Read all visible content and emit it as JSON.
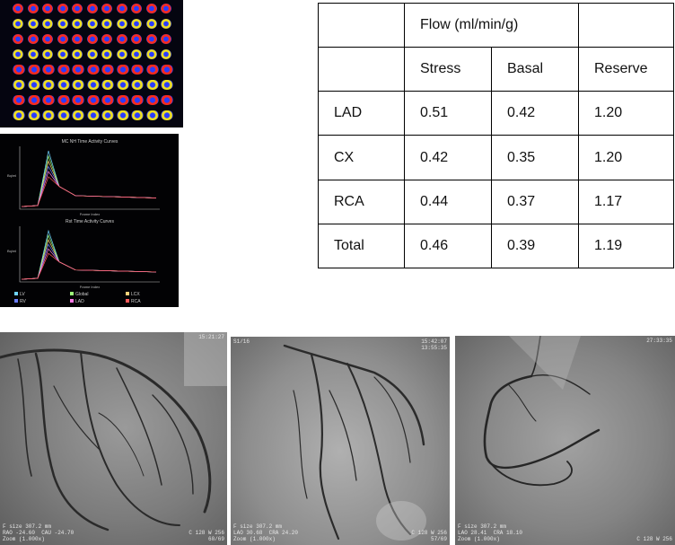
{
  "flow_table": {
    "header_group": "Flow (ml/min/g)",
    "columns": [
      "Stress",
      "Basal",
      "Reserve"
    ],
    "rows": [
      {
        "territory": "LAD",
        "stress": "0.51",
        "basal": "0.42",
        "reserve": "1.20"
      },
      {
        "territory": "CX",
        "stress": "0.42",
        "basal": "0.35",
        "reserve": "1.20"
      },
      {
        "territory": "RCA",
        "stress": "0.44",
        "basal": "0.37",
        "reserve": "1.17"
      },
      {
        "territory": "Total",
        "stress": "0.46",
        "basal": "0.39",
        "reserve": "1.19"
      }
    ]
  },
  "tac_panel": {
    "top_title": "MC NH Time Activity Curves",
    "bottom_title": "Rst Time Activity Curves",
    "x_label": "Frame Index",
    "y_label": "Bq/ml",
    "legend": [
      {
        "label": "LV",
        "color": "#6fd3ff"
      },
      {
        "label": "Global",
        "color": "#9dff7a"
      },
      {
        "label": "LCX",
        "color": "#ffd27a"
      },
      {
        "label": "RV",
        "color": "#6a7dff"
      },
      {
        "label": "LAD",
        "color": "#ff7ae6"
      },
      {
        "label": "RCA",
        "color": "#ff5a5a"
      }
    ]
  },
  "angiograms": [
    {
      "top_right": "15:21:27",
      "bottom_left": "F size 307.2 mm\nRAO -24.60  CAU -24.70\nZoom (1.000x)",
      "bottom_right": "C 128 W 256\n60/69"
    },
    {
      "top_left": "S1/16",
      "top_right": "15:42:07\n13:55:35",
      "bottom_left": "F size 307.2 mm\nLAO 30.68  CRA 24.20\nZoom (1.000x)",
      "bottom_right": "C 128 W 256\n57/69"
    },
    {
      "top_right": "27:33:35",
      "bottom_left": "F size 307.2 mm\nLAO 28.41  CRA 18.10\nZoom (1.000x)",
      "bottom_right": "C 128 W 256"
    }
  ],
  "colors": {
    "pet_background": "#050510",
    "pet_hot": "#ff2a1a",
    "pet_mid": "#f0e020",
    "pet_cool": "#2a3cff"
  }
}
